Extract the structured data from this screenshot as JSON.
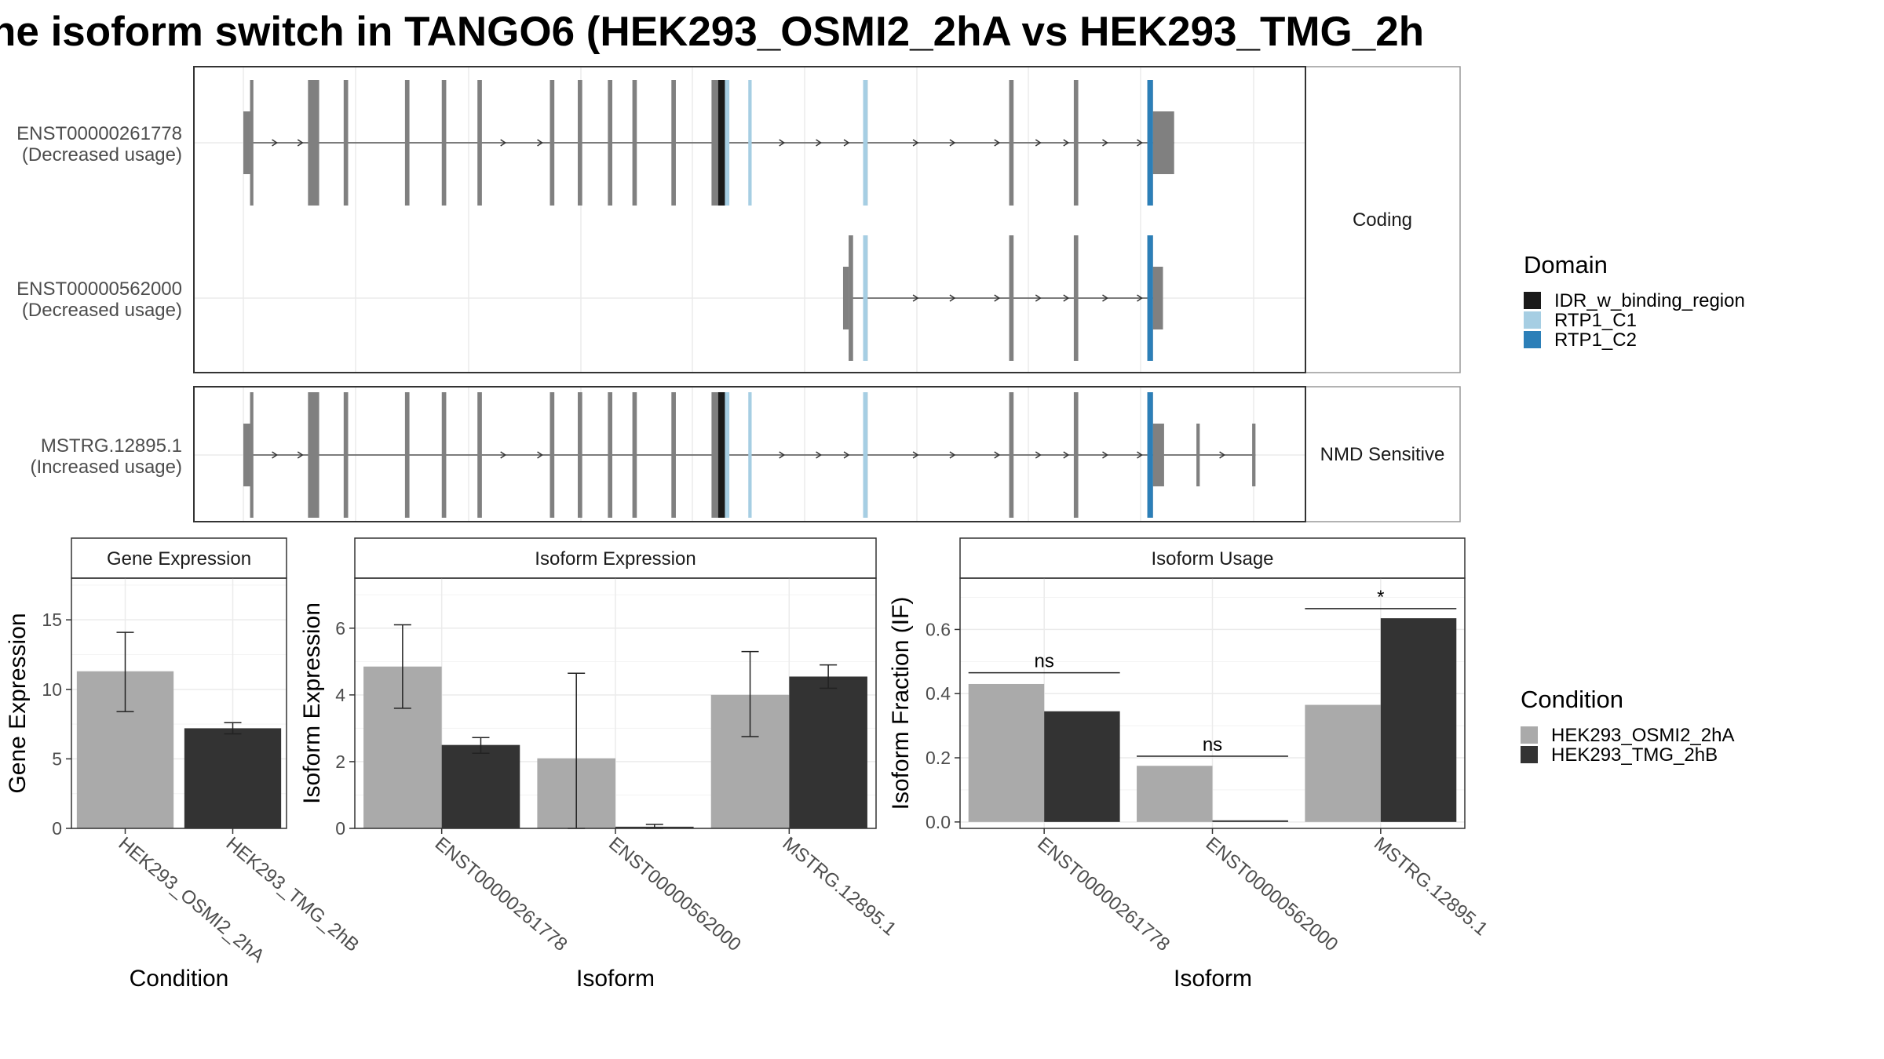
{
  "title": "ne isoform switch in TANGO6 (HEK293_OSMI2_2hA vs HEK293_TMG_2h",
  "colors": {
    "exon": "#808080",
    "IDR_w_binding_region": "#1a1a1a",
    "RTP1_C1": "#a6cee3",
    "RTP1_C2": "#2c7fb8",
    "cond_a": "#aaaaaa",
    "cond_b": "#333333"
  },
  "structure": {
    "panels": [
      {
        "strip": "Coding",
        "transcripts": [
          {
            "id": "ENST00000261778",
            "usage": "(Decreased usage)",
            "start": 0.5,
            "end": 83.5,
            "exons": [
              {
                "s": 0,
                "e": 0.6,
                "h": "small"
              },
              {
                "s": 0.6,
                "e": 0.9,
                "h": "big"
              },
              {
                "s": 5.8,
                "e": 6.8,
                "h": "big"
              },
              {
                "s": 9,
                "e": 9.4,
                "h": "big"
              },
              {
                "s": 14.5,
                "e": 14.9,
                "h": "big"
              },
              {
                "s": 17.8,
                "e": 18.2,
                "h": "big"
              },
              {
                "s": 21,
                "e": 21.4,
                "h": "big"
              },
              {
                "s": 27.5,
                "e": 27.9,
                "h": "big"
              },
              {
                "s": 30,
                "e": 30.4,
                "h": "big"
              },
              {
                "s": 32.7,
                "e": 33.1,
                "h": "big"
              },
              {
                "s": 34.9,
                "e": 35.3,
                "h": "big"
              },
              {
                "s": 38.4,
                "e": 38.8,
                "h": "big"
              },
              {
                "s": 42,
                "e": 43.4,
                "h": "big"
              },
              {
                "s": 55.6,
                "e": 56,
                "h": "big"
              },
              {
                "s": 68.7,
                "e": 69.1,
                "h": "big"
              },
              {
                "s": 74.5,
                "e": 74.9,
                "h": "big"
              },
              {
                "s": 81.1,
                "e": 81.6,
                "h": "big"
              },
              {
                "s": 81.6,
                "e": 83.5,
                "h": "small"
              }
            ],
            "domains": [
              {
                "s": 42.6,
                "e": 43.2,
                "name": "IDR_w_binding_region"
              },
              {
                "s": 43.2,
                "e": 43.6,
                "name": "RTP1_C1"
              },
              {
                "s": 45.3,
                "e": 45.6,
                "name": "RTP1_C1"
              },
              {
                "s": 55.6,
                "e": 56,
                "name": "RTP1_C1"
              },
              {
                "s": 81.1,
                "e": 81.6,
                "name": "RTP1_C2"
              }
            ],
            "arrows": [
              3,
              5.3,
              23.5,
              26.8,
              48.5,
              51.8,
              54.3,
              60.5,
              63.8,
              67.8,
              71.5,
              74,
              77.5,
              80.6
            ]
          },
          {
            "id": "ENST00000562000",
            "usage": "(Decreased usage)",
            "start": 54.5,
            "end": 82.5,
            "exons": [
              {
                "s": 53.8,
                "e": 54.3,
                "h": "small"
              },
              {
                "s": 54.3,
                "e": 54.7,
                "h": "big"
              },
              {
                "s": 55.6,
                "e": 56,
                "h": "big"
              },
              {
                "s": 68.7,
                "e": 69.1,
                "h": "big"
              },
              {
                "s": 74.5,
                "e": 74.9,
                "h": "big"
              },
              {
                "s": 81.1,
                "e": 81.6,
                "h": "big"
              },
              {
                "s": 81.6,
                "e": 82.5,
                "h": "small"
              }
            ],
            "domains": [
              {
                "s": 55.6,
                "e": 56,
                "name": "RTP1_C1"
              },
              {
                "s": 81.1,
                "e": 81.6,
                "name": "RTP1_C2"
              }
            ],
            "arrows": [
              60.5,
              63.8,
              67.8,
              71.5,
              74,
              77.5,
              80.6
            ]
          }
        ]
      },
      {
        "strip": "NMD Sensitive",
        "transcripts": [
          {
            "id": "MSTRG.12895.1",
            "usage": "(Increased usage)",
            "start": 0.5,
            "end": 90.8,
            "exons": [
              {
                "s": 0,
                "e": 0.6,
                "h": "small"
              },
              {
                "s": 0.6,
                "e": 0.9,
                "h": "big"
              },
              {
                "s": 5.8,
                "e": 6.8,
                "h": "big"
              },
              {
                "s": 9,
                "e": 9.4,
                "h": "big"
              },
              {
                "s": 14.5,
                "e": 14.9,
                "h": "big"
              },
              {
                "s": 17.8,
                "e": 18.2,
                "h": "big"
              },
              {
                "s": 21,
                "e": 21.4,
                "h": "big"
              },
              {
                "s": 27.5,
                "e": 27.9,
                "h": "big"
              },
              {
                "s": 30,
                "e": 30.4,
                "h": "big"
              },
              {
                "s": 32.7,
                "e": 33.1,
                "h": "big"
              },
              {
                "s": 34.9,
                "e": 35.3,
                "h": "big"
              },
              {
                "s": 38.4,
                "e": 38.8,
                "h": "big"
              },
              {
                "s": 42,
                "e": 43.4,
                "h": "big"
              },
              {
                "s": 55.6,
                "e": 56,
                "h": "big"
              },
              {
                "s": 68.7,
                "e": 69.1,
                "h": "big"
              },
              {
                "s": 74.5,
                "e": 74.9,
                "h": "big"
              },
              {
                "s": 81.1,
                "e": 81.6,
                "h": "big"
              },
              {
                "s": 81.6,
                "e": 82.6,
                "h": "small"
              },
              {
                "s": 85.5,
                "e": 85.8,
                "h": "small"
              },
              {
                "s": 90.5,
                "e": 90.8,
                "h": "small"
              }
            ],
            "domains": [
              {
                "s": 42.6,
                "e": 43.2,
                "name": "IDR_w_binding_region"
              },
              {
                "s": 43.2,
                "e": 43.6,
                "name": "RTP1_C1"
              },
              {
                "s": 45.3,
                "e": 45.6,
                "name": "RTP1_C1"
              },
              {
                "s": 55.6,
                "e": 56,
                "name": "RTP1_C1"
              },
              {
                "s": 81.1,
                "e": 81.6,
                "name": "RTP1_C2"
              }
            ],
            "arrows": [
              3,
              5.3,
              23.5,
              26.8,
              48.5,
              51.8,
              54.3,
              60.5,
              63.8,
              67.8,
              71.5,
              74,
              77.5,
              80.6,
              88
            ]
          }
        ]
      }
    ]
  },
  "legend_domain": {
    "title": "Domain",
    "items": [
      {
        "label": "IDR_w_binding_region",
        "color": "#1a1a1a"
      },
      {
        "label": "RTP1_C1",
        "color": "#a6cee3"
      },
      {
        "label": "RTP1_C2",
        "color": "#2c7fb8"
      }
    ]
  },
  "legend_condition": {
    "title": "Condition",
    "items": [
      {
        "label": "HEK293_OSMI2_2hA",
        "color": "#aaaaaa"
      },
      {
        "label": "HEK293_TMG_2hB",
        "color": "#333333"
      }
    ]
  },
  "chart_data": [
    {
      "type": "bar",
      "title": "Gene Expression",
      "xlabel": "Condition",
      "ylabel": "Gene Expression",
      "ylim": [
        0,
        18
      ],
      "yticks": [
        0,
        5,
        10,
        15
      ],
      "categories": [
        "HEK293_OSMI2_2hA",
        "HEK293_TMG_2hB"
      ],
      "bars": [
        {
          "cat": 0,
          "cond": "HEK293_OSMI2_2hA",
          "value": 11.3,
          "err": [
            8.4,
            14.1
          ]
        },
        {
          "cat": 1,
          "cond": "HEK293_TMG_2hB",
          "value": 7.2,
          "err": [
            6.8,
            7.6
          ]
        }
      ]
    },
    {
      "type": "bar",
      "title": "Isoform Expression",
      "xlabel": "Isoform",
      "ylabel": "Isoform Expression",
      "ylim": [
        0,
        7.5
      ],
      "yticks": [
        0,
        2,
        4,
        6
      ],
      "categories": [
        "ENST00000261778",
        "ENST00000562000",
        "MSTRG.12895.1"
      ],
      "series": [
        {
          "name": "HEK293_OSMI2_2hA",
          "values": [
            4.85,
            2.1,
            4.0
          ],
          "err_low": [
            3.6,
            0.0,
            2.75
          ],
          "err_high": [
            6.1,
            4.65,
            5.3
          ]
        },
        {
          "name": "HEK293_TMG_2hB",
          "values": [
            2.5,
            0.05,
            4.55
          ],
          "err_low": [
            2.25,
            0.0,
            4.2
          ],
          "err_high": [
            2.72,
            0.12,
            4.9
          ]
        }
      ]
    },
    {
      "type": "bar",
      "title": "Isoform Usage",
      "xlabel": "Isoform",
      "ylabel": "Isoform Fraction (IF)",
      "ylim": [
        -0.02,
        0.76
      ],
      "yticks": [
        0.0,
        0.2,
        0.4,
        0.6
      ],
      "ytick_labels": [
        "0.0",
        "0.2",
        "0.4",
        "0.6"
      ],
      "categories": [
        "ENST00000261778",
        "ENST00000562000",
        "MSTRG.12895.1"
      ],
      "series": [
        {
          "name": "HEK293_OSMI2_2hA",
          "values": [
            0.43,
            0.175,
            0.365
          ]
        },
        {
          "name": "HEK293_TMG_2hB",
          "values": [
            0.345,
            0.005,
            0.635
          ]
        }
      ],
      "significance": [
        {
          "label": "ns",
          "y": 0.465
        },
        {
          "label": "ns",
          "y": 0.205
        },
        {
          "label": "*",
          "y": 0.665
        }
      ]
    }
  ]
}
